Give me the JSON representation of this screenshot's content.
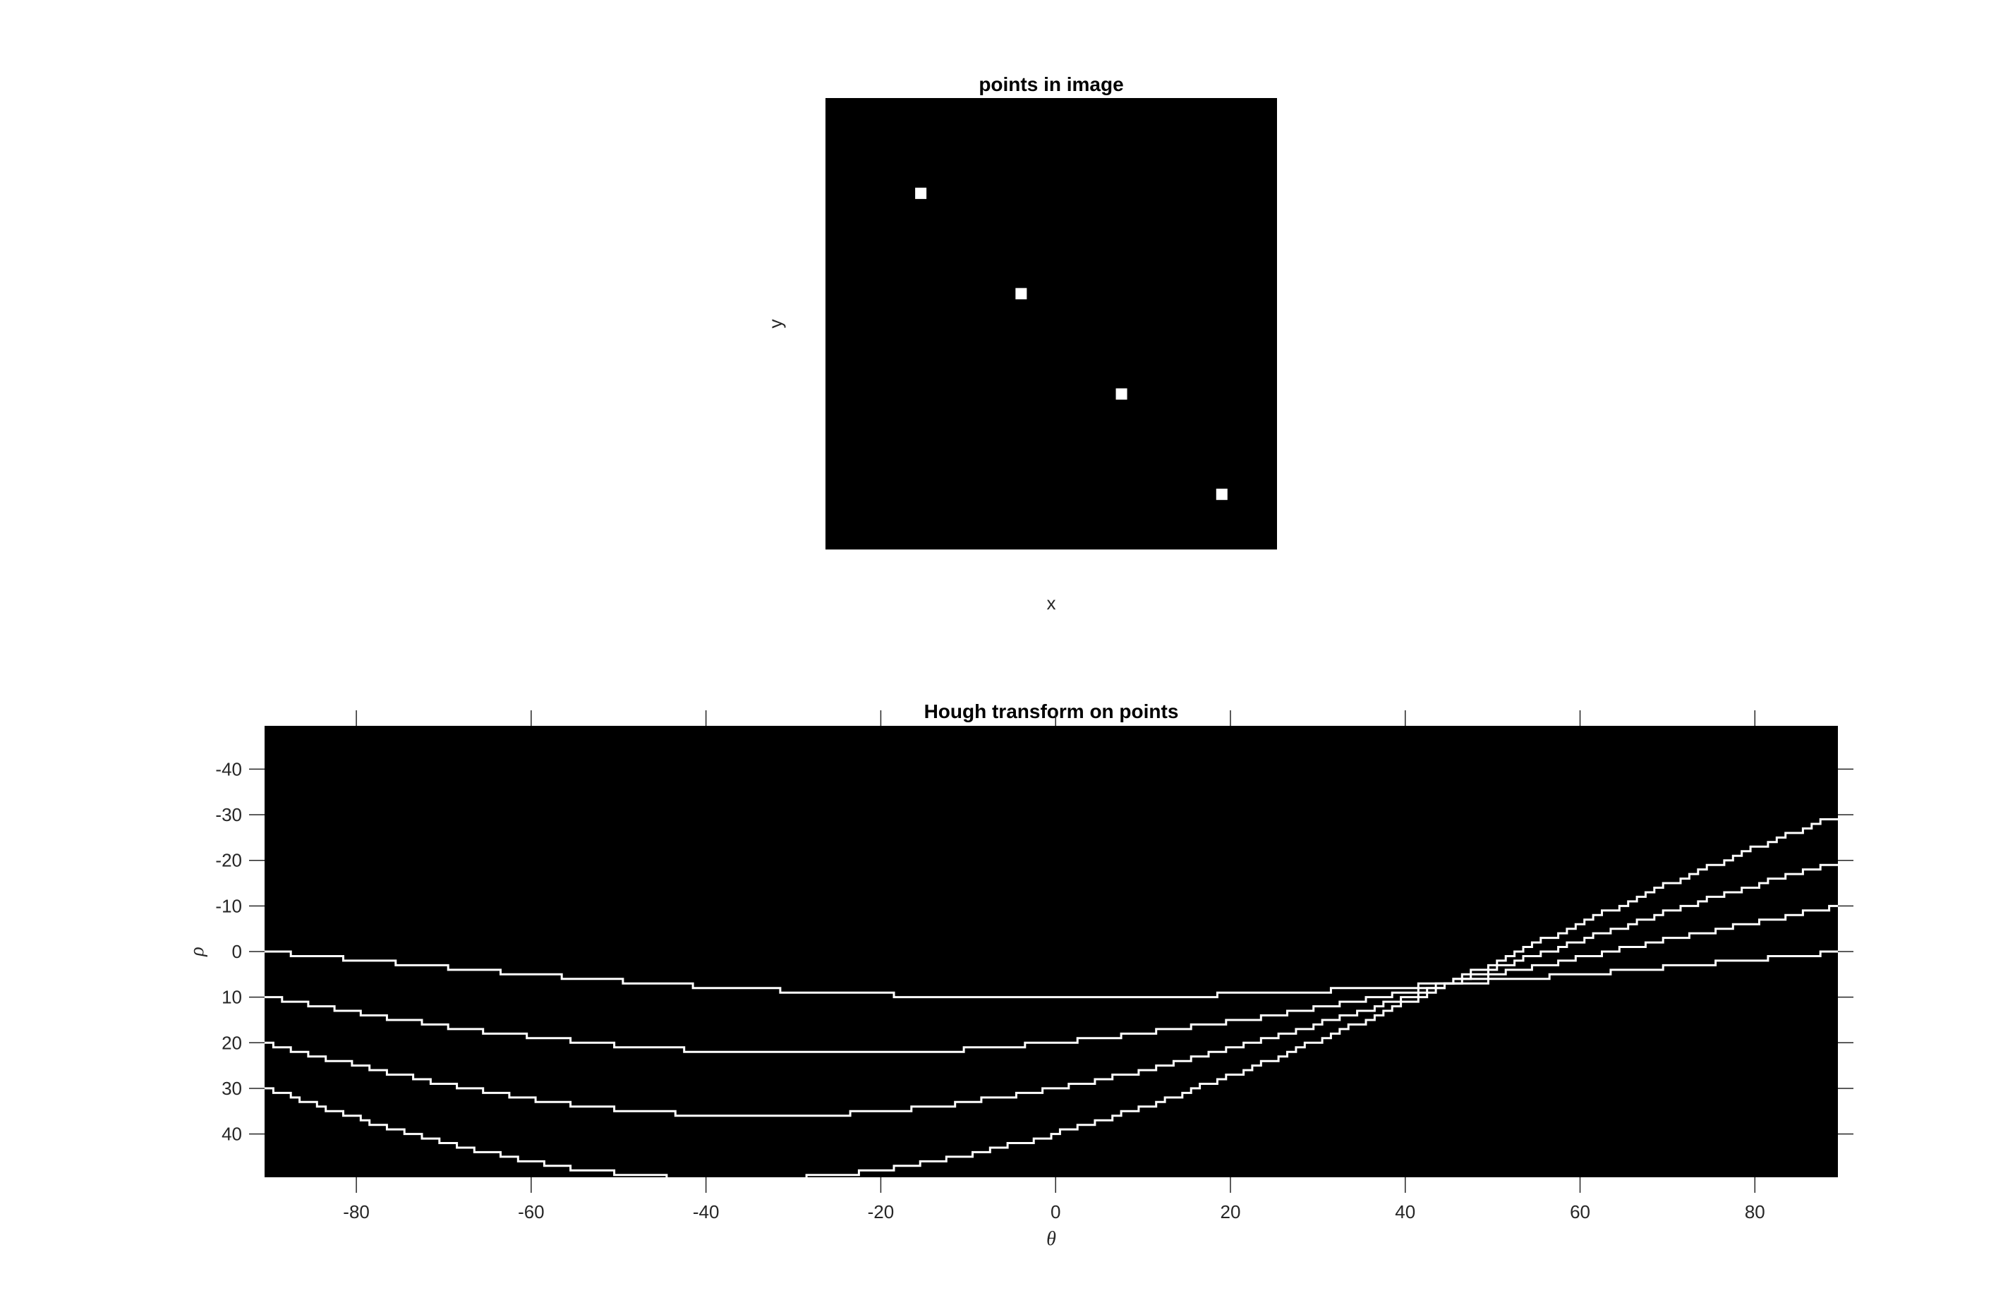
{
  "chart_data": [
    {
      "type": "scatter",
      "title": "points in image",
      "xlabel": "x",
      "ylabel": "y",
      "background": "#000000",
      "marker_color": "#ffffff",
      "xlim": [
        0,
        45
      ],
      "ylim": [
        0,
        45
      ],
      "y_direction": "reverse",
      "axes_ticks": false,
      "points": [
        {
          "x": 9.5,
          "y": 9.5
        },
        {
          "x": 19.5,
          "y": 19.5
        },
        {
          "x": 29.5,
          "y": 29.5
        },
        {
          "x": 39.5,
          "y": 39.5
        }
      ]
    },
    {
      "type": "heatmap",
      "title": "Hough transform on points",
      "xlabel": "θ",
      "ylabel": "ρ",
      "background": "#000000",
      "curve_color": "#ffffff",
      "xlim": [
        -90,
        89
      ],
      "ylim": [
        -49.5,
        49.5
      ],
      "y_direction": "reverse",
      "xticks": [
        -80,
        -60,
        -40,
        -20,
        0,
        20,
        40,
        60,
        80
      ],
      "yticks": [
        -40,
        -30,
        -20,
        -10,
        0,
        10,
        20,
        30,
        40
      ],
      "curves": [
        {
          "x_point": 10,
          "y_point": 0
        },
        {
          "x_point": 20,
          "y_point": -10
        },
        {
          "x_point": 30,
          "y_point": -20
        },
        {
          "x_point": 40,
          "y_point": -30
        }
      ],
      "curve_equation": "rho = x*cos(theta) + y*sin(theta)"
    }
  ]
}
